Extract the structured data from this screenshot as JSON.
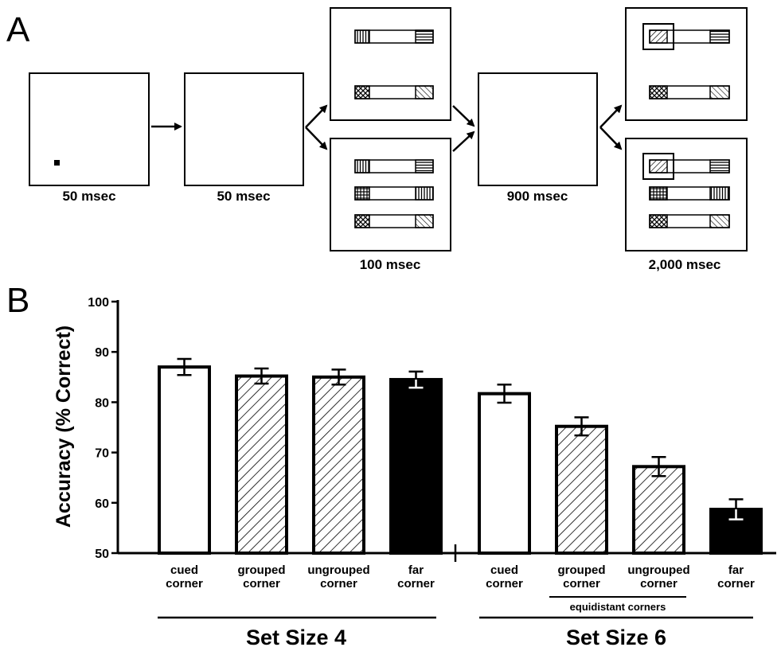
{
  "panels": {
    "a_label": "A",
    "b_label": "B"
  },
  "sequence": {
    "durations": [
      "50 msec",
      "50 msec",
      "100 msec",
      "900 msec",
      "2,000 msec"
    ]
  },
  "chart_data": {
    "type": "bar",
    "ylabel": "Accuracy (% Correct)",
    "xlabel": "",
    "title": "",
    "ylim": [
      50,
      100
    ],
    "yticks": [
      50,
      60,
      70,
      80,
      90,
      100
    ],
    "grid": false,
    "groups": [
      {
        "name": "Set Size 4",
        "bars": [
          {
            "label": [
              "cued",
              "corner"
            ],
            "value": 87,
            "error": 1.6,
            "fill": "white"
          },
          {
            "label": [
              "grouped",
              "corner"
            ],
            "value": 85.2,
            "error": 1.5,
            "fill": "hatch"
          },
          {
            "label": [
              "ungrouped",
              "corner"
            ],
            "value": 85,
            "error": 1.5,
            "fill": "hatch"
          },
          {
            "label": [
              "far",
              "corner"
            ],
            "value": 84.5,
            "error": 1.6,
            "fill": "black"
          }
        ]
      },
      {
        "name": "Set Size 6",
        "subgroup_label": "equidistant corners",
        "bars": [
          {
            "label": [
              "cued",
              "corner"
            ],
            "value": 81.7,
            "error": 1.8,
            "fill": "white"
          },
          {
            "label": [
              "grouped",
              "corner"
            ],
            "value": 75.2,
            "error": 1.8,
            "fill": "hatch"
          },
          {
            "label": [
              "ungrouped",
              "corner"
            ],
            "value": 67.2,
            "error": 1.9,
            "fill": "hatch"
          },
          {
            "label": [
              "far",
              "corner"
            ],
            "value": 58.7,
            "error": 2.0,
            "fill": "black"
          }
        ]
      }
    ]
  }
}
